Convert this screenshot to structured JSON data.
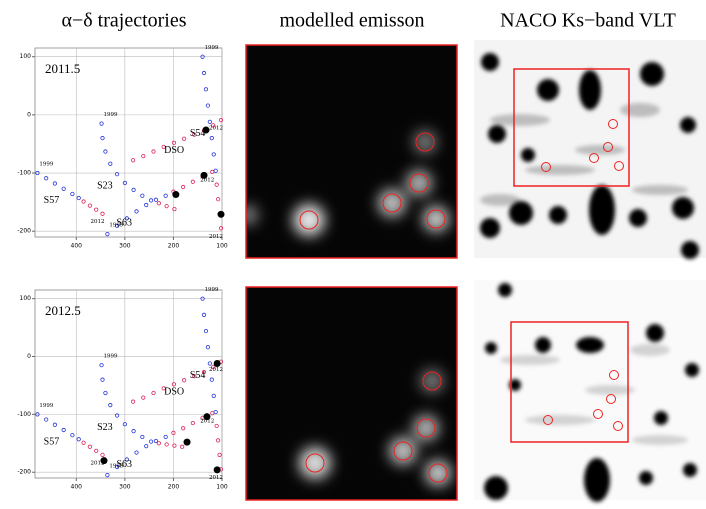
{
  "panel_titles": [
    "α−δ  trajectories",
    "modelled emisson",
    "NACO Ks−band VLT"
  ],
  "chart_data": [
    {
      "type": "scatter",
      "annotation": "2011.5",
      "xlim": [
        485,
        100
      ],
      "ylim": [
        -210,
        115
      ],
      "xticks": [
        400,
        300,
        200,
        100
      ],
      "yticks": [
        100,
        0,
        -100,
        -200
      ],
      "grid": true,
      "series": [
        {
          "name": "S57",
          "color": "#2233dd",
          "start_label": "1999",
          "x": [
            480,
            462,
            444,
            426,
            408,
            395
          ],
          "values": [
            -100,
            -109,
            -118,
            -127,
            -136,
            -143
          ]
        },
        {
          "color": "#dd2255",
          "end_label": "2012",
          "x": [
            385,
            372,
            359,
            346
          ],
          "values": [
            -149,
            -156,
            -163,
            -170
          ]
        },
        {
          "name": "S23",
          "color": "#2233dd",
          "start_label": "1999",
          "x": [
            348,
            346,
            340,
            330,
            316,
            300,
            282,
            264,
            246
          ],
          "values": [
            -15,
            -40,
            -63,
            -84,
            -102,
            -117,
            -129,
            -139,
            -147
          ]
        },
        {
          "color": "#dd2255",
          "x": [
            230,
            214,
            198
          ],
          "values": [
            -152,
            -157,
            -162
          ]
        },
        {
          "name": "DSO",
          "color": "#dd2255",
          "end_label": "2012",
          "x": [
            283,
            262,
            241,
            220,
            199,
            178,
            157,
            137,
            118,
            102
          ],
          "values": [
            -78,
            -71,
            -63,
            -55,
            -48,
            -41,
            -34,
            -27,
            -18,
            -9
          ]
        },
        {
          "name": "S63",
          "color": "#2233dd",
          "start_label": "1999",
          "x": [
            336,
            316,
            296,
            276,
            256,
            236,
            216
          ],
          "values": [
            -205,
            -191,
            -178,
            -166,
            -155,
            -146,
            -139
          ]
        },
        {
          "color": "#dd2255",
          "end_label": "2012",
          "x": [
            200,
            180,
            160,
            140,
            120
          ],
          "values": [
            -132,
            -124,
            -115,
            -106,
            -98
          ]
        },
        {
          "name": "S54",
          "color": "#2233dd",
          "start_label": "1999",
          "x": [
            140,
            137,
            133,
            129,
            125,
            121,
            117,
            113
          ],
          "values": [
            100,
            72,
            44,
            16,
            -12,
            -40,
            -68,
            -96
          ]
        },
        {
          "color": "#dd2255",
          "end_label": "2012",
          "x": [
            111,
            108,
            105,
            102
          ],
          "values": [
            -120,
            -145,
            -170,
            -195
          ]
        }
      ],
      "positions": {
        "color": "#000000",
        "x": [
          133,
          137,
          195,
          102
        ],
        "values": [
          -26,
          -104,
          -137,
          -171
        ]
      }
    },
    {
      "type": "scatter",
      "annotation": "2012.5",
      "xlim": [
        485,
        100
      ],
      "ylim": [
        -210,
        115
      ],
      "xticks": [
        400,
        300,
        200,
        100
      ],
      "yticks": [
        100,
        0,
        -100,
        -200
      ],
      "grid": true,
      "series": [
        {
          "name": "S57",
          "color": "#2233dd",
          "start_label": "1999",
          "x": [
            480,
            462,
            444,
            426,
            408,
            395
          ],
          "values": [
            -100,
            -109,
            -118,
            -127,
            -136,
            -143
          ]
        },
        {
          "color": "#dd2255",
          "end_label": "2012",
          "x": [
            385,
            372,
            359,
            346
          ],
          "values": [
            -149,
            -156,
            -163,
            -170
          ]
        },
        {
          "name": "S23",
          "color": "#2233dd",
          "start_label": "1999",
          "x": [
            348,
            346,
            340,
            330,
            316,
            300,
            282,
            264,
            246
          ],
          "values": [
            -15,
            -40,
            -63,
            -84,
            -102,
            -117,
            -129,
            -139,
            -147
          ]
        },
        {
          "color": "#dd2255",
          "x": [
            230,
            214,
            198,
            182
          ],
          "values": [
            -150,
            -152,
            -154,
            -156
          ]
        },
        {
          "name": "DSO",
          "color": "#dd2255",
          "end_label": "2012",
          "x": [
            283,
            262,
            241,
            220,
            199,
            178,
            157,
            137,
            118,
            102
          ],
          "values": [
            -78,
            -71,
            -63,
            -55,
            -48,
            -41,
            -34,
            -27,
            -18,
            -9
          ]
        },
        {
          "name": "S63",
          "color": "#2233dd",
          "start_label": "1999",
          "x": [
            336,
            316,
            296,
            276,
            256,
            236,
            216
          ],
          "values": [
            -205,
            -191,
            -178,
            -166,
            -155,
            -146,
            -139
          ]
        },
        {
          "color": "#dd2255",
          "end_label": "2012",
          "x": [
            200,
            180,
            160,
            140,
            120
          ],
          "values": [
            -132,
            -124,
            -115,
            -106,
            -98
          ]
        },
        {
          "name": "S54",
          "color": "#2233dd",
          "start_label": "1999",
          "x": [
            140,
            137,
            133,
            129,
            125,
            121,
            117,
            113
          ],
          "values": [
            100,
            72,
            44,
            16,
            -12,
            -40,
            -68,
            -96
          ]
        },
        {
          "color": "#dd2255",
          "end_label": "2012",
          "x": [
            111,
            108,
            105,
            102
          ],
          "values": [
            -120,
            -145,
            -170,
            -195
          ]
        }
      ],
      "positions": {
        "color": "#000000",
        "x": [
          110,
          131,
          172,
          110,
          343
        ],
        "values": [
          -12,
          -104,
          -148,
          -196,
          -180
        ]
      }
    }
  ]
}
